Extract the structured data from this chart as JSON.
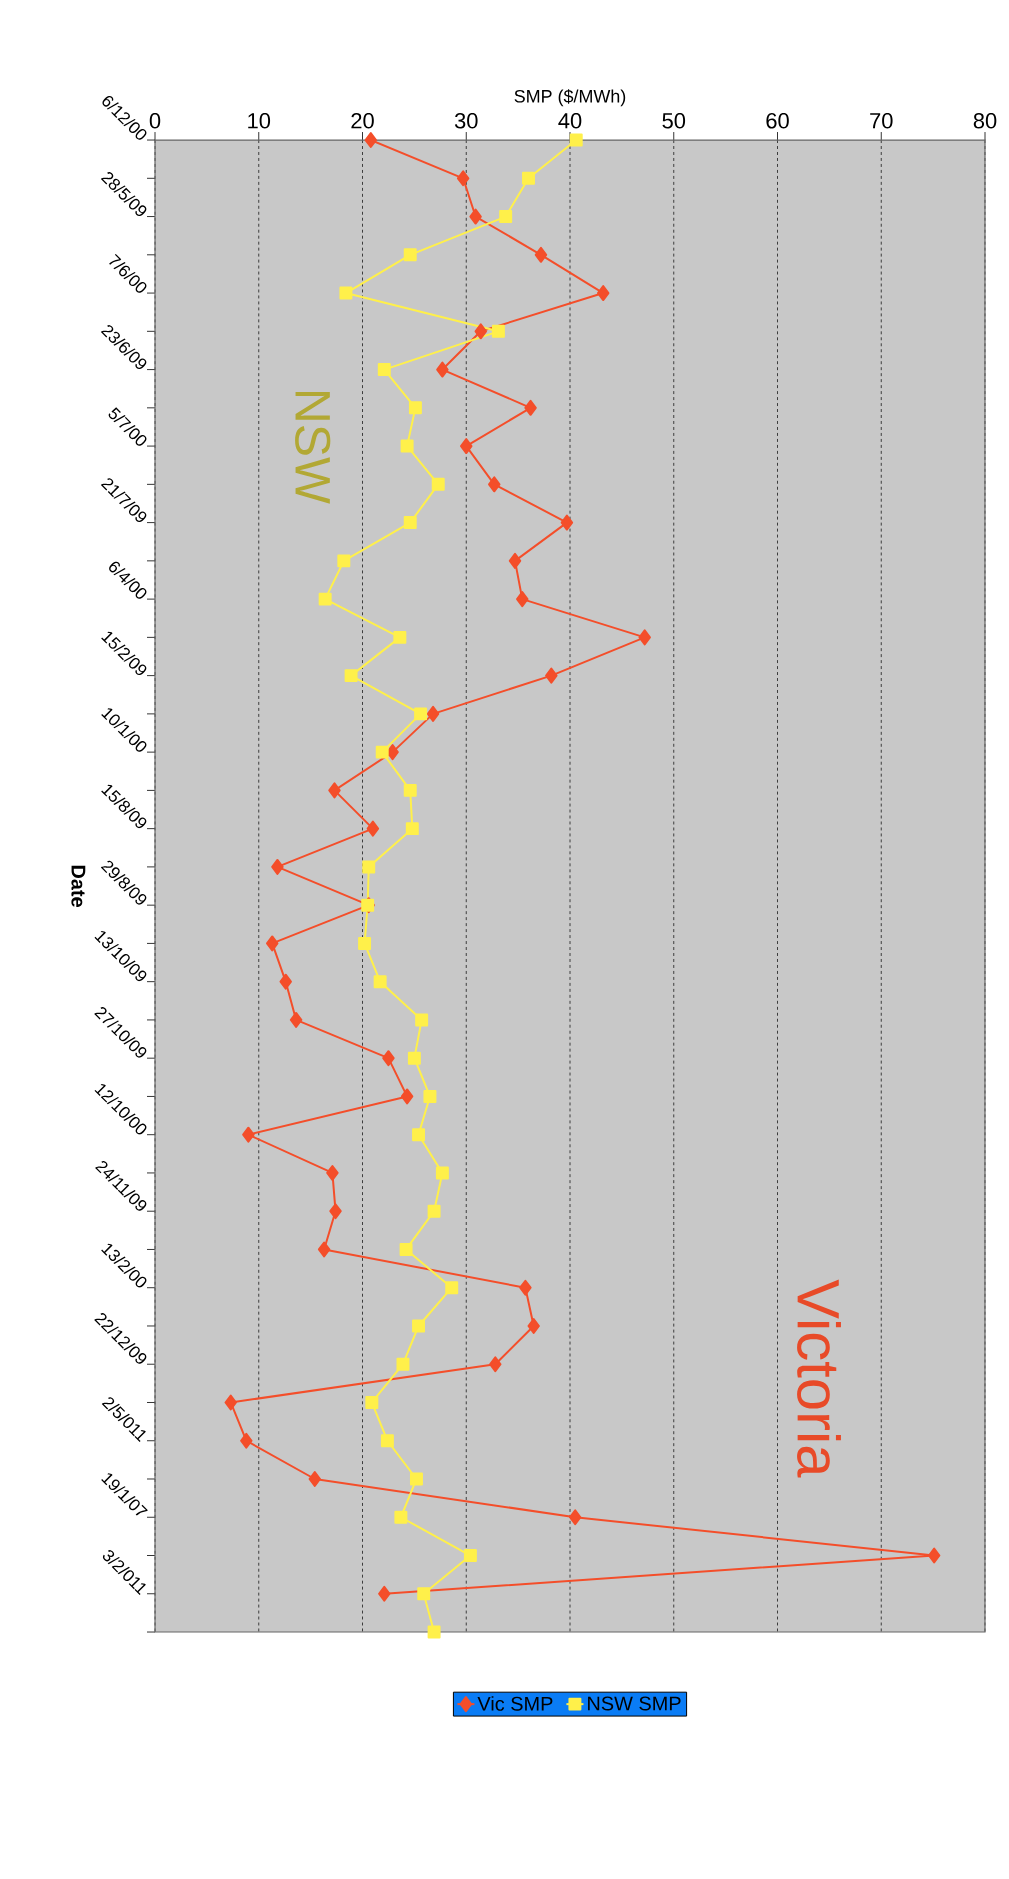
{
  "chart_data": {
    "type": "line",
    "ylabel": "Date",
    "xlabel": "SMP ($/MWh)",
    "categories": [
      "6/12/00",
      null,
      "28/5/09",
      null,
      "7/6/00",
      null,
      "23/6/09",
      null,
      "5/7/00",
      null,
      "21/7/09",
      null,
      "6/4/00",
      null,
      "15/2/09",
      null,
      "10/1/00",
      null,
      "15/8/09",
      null,
      "29/8/09",
      null,
      "13/10/09",
      null,
      "27/10/09",
      null,
      "12/10/00",
      null,
      "24/11/09",
      null,
      "13/2/00",
      null,
      "22/12/09",
      null,
      "2/5/011",
      null,
      "19/1/07",
      null,
      "3/2/011",
      null
    ],
    "series": [
      {
        "name": "Vic SMP",
        "color": "#f44e2a",
        "marker": "diamond",
        "values": [
          20.8,
          29.7,
          30.9,
          37.2,
          43.2,
          31.4,
          27.7,
          36.2,
          30.0,
          32.7,
          39.7,
          34.7,
          35.4,
          47.2,
          38.2,
          26.8,
          22.9,
          17.3,
          21.0,
          11.8,
          20.6,
          11.3,
          12.6,
          13.6,
          22.5,
          24.3,
          9.0,
          17.1,
          17.4,
          16.3,
          35.7,
          36.5,
          32.8,
          7.3,
          8.8,
          15.4,
          40.5,
          75.1,
          22.1,
          null
        ]
      },
      {
        "name": "NSW SMP",
        "color": "#fff04a",
        "marker": "square",
        "values": [
          40.6,
          36.0,
          33.8,
          24.6,
          18.4,
          33.1,
          22.1,
          25.1,
          24.3,
          27.3,
          24.6,
          18.2,
          16.4,
          23.6,
          18.9,
          25.6,
          21.9,
          24.6,
          24.8,
          20.6,
          20.5,
          20.2,
          21.7,
          25.7,
          25.0,
          26.5,
          25.4,
          27.7,
          26.9,
          24.2,
          28.6,
          25.4,
          23.9,
          20.9,
          22.4,
          25.2,
          23.7,
          30.4,
          25.9,
          26.9
        ]
      }
    ],
    "orientation": "horizontal",
    "xlim": [
      0,
      80
    ],
    "xticks": [
      0,
      10,
      20,
      30,
      40,
      50,
      60,
      70,
      80
    ],
    "grid": "x",
    "legend": "right",
    "annotations": [
      "NSW",
      "Victoria"
    ]
  }
}
